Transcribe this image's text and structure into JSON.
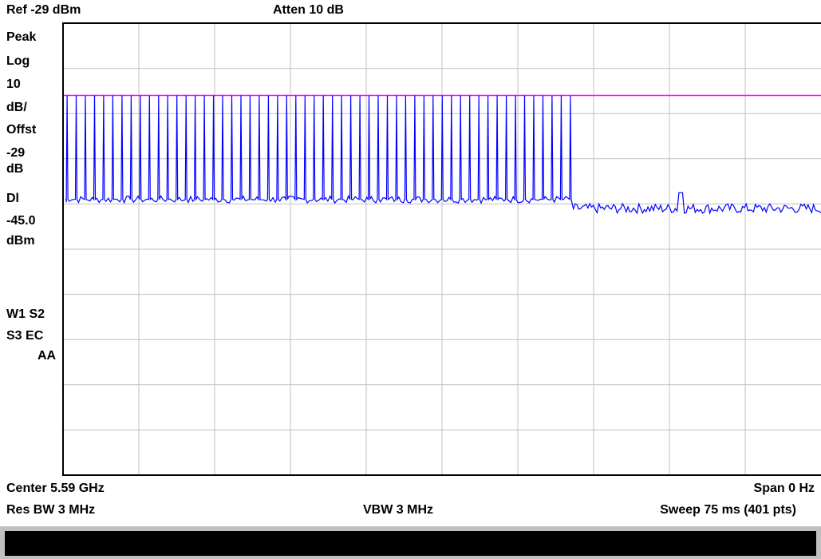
{
  "header": {
    "ref": "Ref -29 dBm",
    "atten": "Atten 10 dB"
  },
  "left_annotations": {
    "lines": [
      "Peak",
      "Log",
      "10",
      "dB/",
      "Offst",
      "-29",
      "dB",
      "Dl",
      "-45.0",
      "dBm"
    ],
    "trace_flags": [
      "W1 S2",
      "S3 EC",
      "AA"
    ]
  },
  "footer": {
    "center": "Center 5.59 GHz",
    "span": "Span 0 Hz",
    "res_bw": "Res BW 3 MHz",
    "vbw": "VBW 3 MHz",
    "sweep": "Sweep 75 ms (401 pts)"
  },
  "colors": {
    "trace": "#0000ff",
    "display_line": "#ff00ff",
    "grid": "#c0c0c0",
    "status_bar": "#000000"
  },
  "chart_data": {
    "type": "line",
    "x_unit": "ms",
    "xlim": [
      0,
      75
    ],
    "ylim": [
      -129,
      -29
    ],
    "y_scale_db_per_div": 10,
    "display_line_dbm": -45.0,
    "pulse_train": {
      "pulse_count": 56,
      "start_ms": 0.4,
      "end_ms": 50.2,
      "pulse_peak_dbm": -45,
      "noise_floor_dbm": -68
    },
    "noise_floor_after_burst_dbm": -70,
    "grid": true
  }
}
